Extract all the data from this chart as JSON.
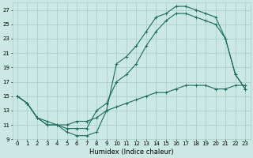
{
  "title": "",
  "xlabel": "Humidex (Indice chaleur)",
  "xlim": [
    -0.5,
    23.5
  ],
  "ylim": [
    9,
    28
  ],
  "yticks": [
    9,
    11,
    13,
    15,
    17,
    19,
    21,
    23,
    25,
    27
  ],
  "xticks": [
    0,
    1,
    2,
    3,
    4,
    5,
    6,
    7,
    8,
    9,
    10,
    11,
    12,
    13,
    14,
    15,
    16,
    17,
    18,
    19,
    20,
    21,
    22,
    23
  ],
  "bg_color": "#cce8e4",
  "grid_color": "#aacfcb",
  "line_color": "#1a6b60",
  "line1_x": [
    0,
    1,
    2,
    3,
    4,
    5,
    6,
    7,
    8,
    9,
    10,
    11,
    12,
    13,
    14,
    15,
    16,
    17,
    18,
    19,
    20,
    21,
    22,
    23
  ],
  "line1_y": [
    15,
    14,
    12,
    11,
    11,
    10,
    9.5,
    9.5,
    10,
    13,
    19.5,
    20.5,
    22,
    24,
    26,
    26.5,
    27.5,
    27.5,
    27,
    26.5,
    26,
    23,
    18,
    16
  ],
  "line2_x": [
    0,
    1,
    2,
    3,
    4,
    5,
    6,
    7,
    8,
    9,
    10,
    11,
    12,
    13,
    14,
    15,
    16,
    17,
    18,
    19,
    20,
    21,
    22,
    23
  ],
  "line2_y": [
    15,
    14,
    12,
    11.5,
    11,
    10.5,
    10.5,
    10.5,
    13,
    14,
    17,
    18,
    19.5,
    22,
    24,
    25.5,
    26.5,
    26.5,
    26,
    25.5,
    25,
    23,
    18,
    16
  ],
  "line3_x": [
    0,
    1,
    2,
    3,
    4,
    5,
    6,
    7,
    8,
    9,
    10,
    11,
    12,
    13,
    14,
    15,
    16,
    17,
    18,
    19,
    20,
    21,
    22,
    23
  ],
  "line3_y": [
    15,
    14,
    12,
    11,
    11,
    11,
    11.5,
    11.5,
    12,
    13,
    13.5,
    14,
    14.5,
    15,
    15.5,
    15.5,
    16,
    16.5,
    16.5,
    16.5,
    16,
    16,
    16.5,
    16.5
  ],
  "tick_fontsize": 5.0,
  "xlabel_fontsize": 6.0,
  "lw": 0.8,
  "ms": 2.5
}
